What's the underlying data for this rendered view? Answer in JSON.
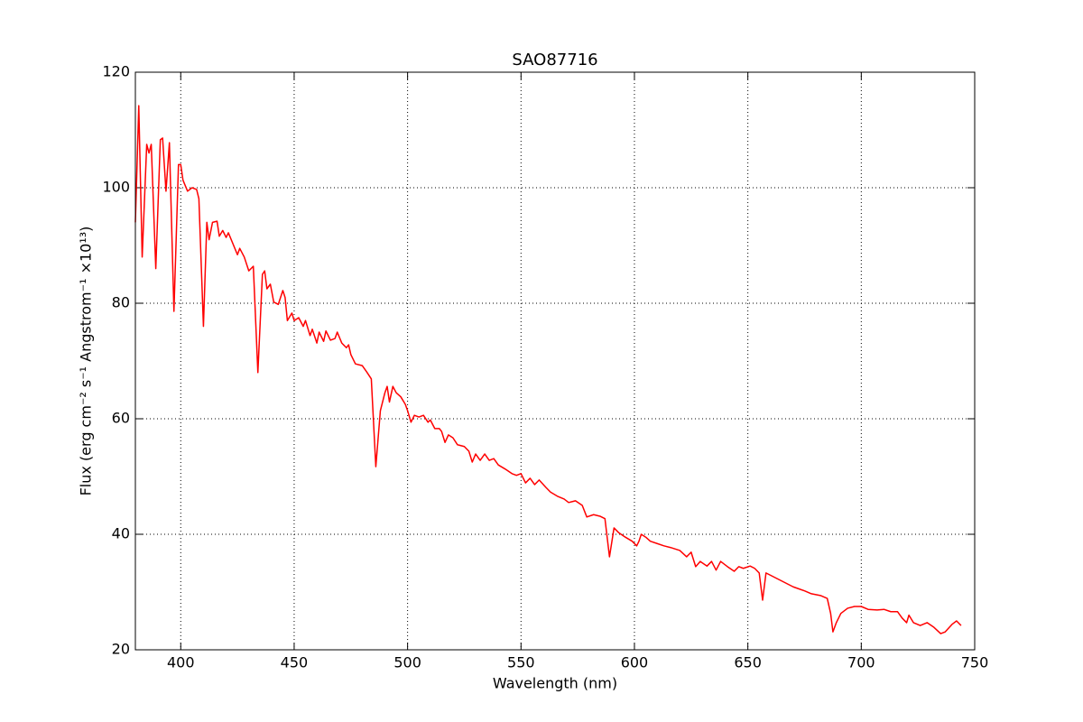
{
  "chart_data": {
    "type": "line",
    "title": "SAO87716",
    "xlabel": "Wavelength (nm)",
    "ylabel": "Flux  (erg cm⁻² s⁻¹ Angstrom⁻¹ ×10¹³)",
    "xlim": [
      380,
      750
    ],
    "xticks": [
      400,
      450,
      500,
      550,
      600,
      650,
      700,
      750
    ],
    "ylim": [
      20,
      120
    ],
    "yticks": [
      20,
      40,
      60,
      80,
      100,
      120
    ],
    "grid": true,
    "series": [
      {
        "name": "SAO87716",
        "color": "#ff0000",
        "x": [
          380,
          381.5,
          383,
          385,
          386,
          387,
          389,
          391,
          392,
          393.5,
          395,
          397,
          399,
          400,
          401,
          403,
          405,
          407,
          408,
          410,
          411.5,
          412.5,
          414,
          416,
          417,
          418.5,
          420,
          421,
          423,
          425,
          426,
          428,
          430,
          432,
          434,
          436,
          437,
          438,
          439.5,
          441,
          443,
          445,
          446,
          447,
          449,
          450,
          452,
          454,
          455,
          457,
          458,
          460,
          461,
          463,
          464,
          466,
          468,
          469,
          471,
          473,
          474,
          475,
          477,
          480,
          482,
          484,
          486,
          488,
          490,
          491,
          492,
          493.5,
          495,
          497,
          499,
          500,
          501.5,
          503,
          505,
          507,
          509,
          510,
          512,
          514,
          515,
          516.5,
          518,
          520,
          522,
          525,
          527,
          528.5,
          530,
          532,
          534,
          536,
          538,
          540,
          543,
          546,
          548,
          550,
          552,
          554,
          556,
          558,
          561,
          563,
          566,
          569,
          571,
          574,
          577,
          579,
          582,
          585,
          587,
          589,
          591,
          593,
          596,
          599,
          601,
          602,
          603,
          605,
          607,
          610,
          613,
          616,
          620,
          623,
          625,
          627,
          629,
          632,
          634,
          636,
          638,
          641,
          644,
          646,
          648,
          651,
          653,
          655,
          656.5,
          658,
          662,
          666,
          670,
          675,
          678,
          682,
          685,
          686.5,
          687.5,
          689,
          691,
          694,
          697,
          700,
          703,
          707,
          710,
          713,
          716,
          718,
          720,
          721,
          723,
          726,
          729,
          732,
          735,
          737,
          740,
          742,
          744
        ],
        "values": [
          94,
          114.2,
          88,
          107.5,
          106,
          107.5,
          86,
          108.3,
          108.6,
          99.4,
          107.8,
          78.6,
          104,
          104,
          101.3,
          99.4,
          100,
          99.7,
          98.1,
          76,
          94,
          91,
          94,
          94.2,
          91.6,
          92.6,
          91.4,
          92.2,
          90.3,
          88.4,
          89.5,
          88,
          85.6,
          86.4,
          68,
          85,
          85.6,
          82.5,
          83.3,
          80.2,
          79.8,
          82.2,
          81,
          77,
          78.3,
          77,
          77.5,
          76,
          77,
          74.4,
          75.5,
          73.1,
          75,
          73.4,
          75.2,
          73.6,
          73.9,
          75,
          73.1,
          72.3,
          72.8,
          71.1,
          69.5,
          69.2,
          68.1,
          66.9,
          51.7,
          61.4,
          64.5,
          65.6,
          62.9,
          65.6,
          64.5,
          63.8,
          62.5,
          61.4,
          59.4,
          60.6,
          60.3,
          60.6,
          59.4,
          59.8,
          58.3,
          58.3,
          57.8,
          55.9,
          57.2,
          56.7,
          55.5,
          55.2,
          54.4,
          52.5,
          53.9,
          52.8,
          53.9,
          52.8,
          53.1,
          52,
          51.3,
          50.5,
          50.2,
          50.5,
          48.9,
          49.7,
          48.6,
          49.4,
          48.1,
          47.3,
          46.6,
          46.1,
          45.5,
          45.8,
          45,
          43,
          43.4,
          43.1,
          42.7,
          36.1,
          41.1,
          40.3,
          39.5,
          38.8,
          38,
          38.8,
          40,
          39.5,
          38.8,
          38.4,
          38,
          37.7,
          37.2,
          36.1,
          36.9,
          34.4,
          35.3,
          34.5,
          35.3,
          33.8,
          35.3,
          34.4,
          33.6,
          34.4,
          34.1,
          34.5,
          34.1,
          33.3,
          28.6,
          33.3,
          32.5,
          31.7,
          30.9,
          30.2,
          29.7,
          29.4,
          28.9,
          26.3,
          23.1,
          24.7,
          26.3,
          27.2,
          27.5,
          27.5,
          27,
          26.9,
          27,
          26.6,
          26.6,
          25.5,
          24.7,
          26,
          24.7,
          24.2,
          24.7,
          23.9,
          22.8,
          23.1,
          24.4,
          25,
          24.2
        ]
      }
    ]
  }
}
